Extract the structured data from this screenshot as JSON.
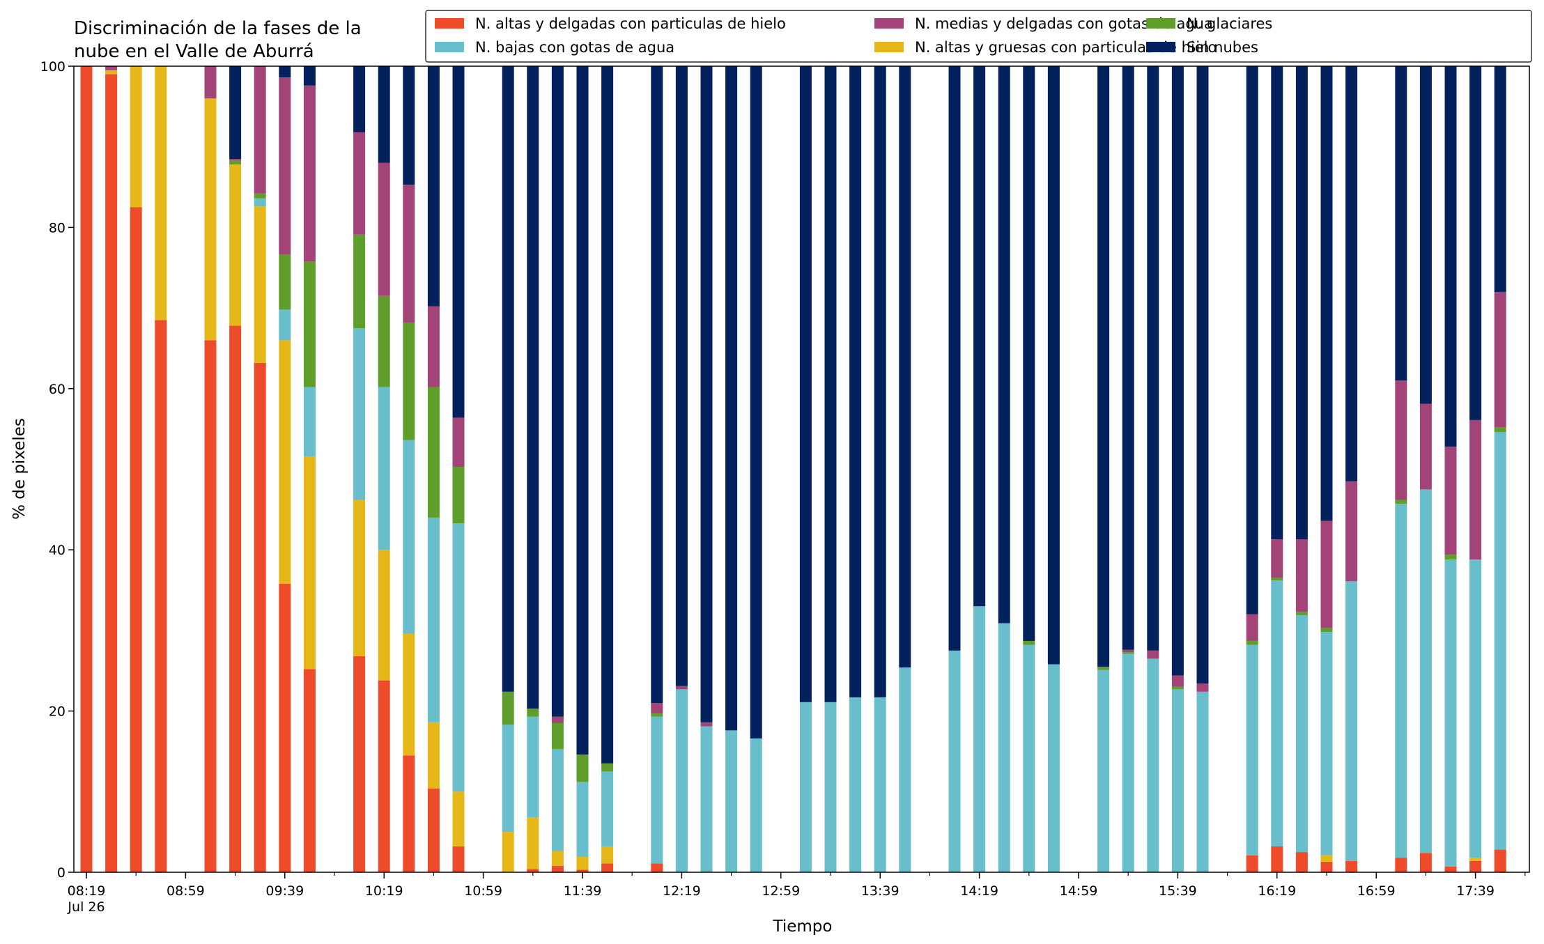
{
  "chart_data": {
    "type": "bar",
    "stacked": true,
    "title_lines": [
      "Discriminación de la fases de la",
      "nube en el Valle de Aburrá"
    ],
    "xlabel": "Tiempo",
    "ylabel": "% de pixeles",
    "ylim": [
      0,
      100
    ],
    "yticks": [
      0,
      20,
      40,
      60,
      80,
      100
    ],
    "grid": false,
    "legend_position": "top-right",
    "x_start": "08:19",
    "x_step_minutes": 10,
    "x_end": "17:59",
    "xtick_labels": [
      {
        "label": "08:19",
        "sub": "Jul 26"
      },
      {
        "label": "08:59",
        "sub": ""
      },
      {
        "label": "09:39",
        "sub": ""
      },
      {
        "label": "10:19",
        "sub": ""
      },
      {
        "label": "10:59",
        "sub": ""
      },
      {
        "label": "11:39",
        "sub": ""
      },
      {
        "label": "12:19",
        "sub": ""
      },
      {
        "label": "12:59",
        "sub": ""
      },
      {
        "label": "13:39",
        "sub": ""
      },
      {
        "label": "14:19",
        "sub": ""
      },
      {
        "label": "14:59",
        "sub": ""
      },
      {
        "label": "15:39",
        "sub": ""
      },
      {
        "label": "16:19",
        "sub": ""
      },
      {
        "label": "16:59",
        "sub": ""
      },
      {
        "label": "17:39",
        "sub": ""
      }
    ],
    "series": [
      {
        "name": "N. altas y delgadas con particulas de hielo",
        "color": "#ee4b2b"
      },
      {
        "name": "N. altas y gruesas con particulas de hielo",
        "color": "#e6b719"
      },
      {
        "name": "N. bajas con gotas de agua",
        "color": "#68bfcb"
      },
      {
        "name": "N. glaciares",
        "color": "#5f9e2b"
      },
      {
        "name": "N. medias y delgadas con gotas de agua",
        "color": "#a24478"
      },
      {
        "name": "Sin nubes",
        "color": "#03215d"
      }
    ],
    "legend_order": [
      0,
      2,
      4,
      1,
      3,
      5
    ],
    "bars": [
      {
        "time": "08:19",
        "values": [
          100,
          0,
          0,
          0,
          0,
          0
        ]
      },
      {
        "time": "08:29",
        "values": [
          99,
          0.5,
          0,
          0,
          0.5,
          0
        ]
      },
      {
        "time": "08:39",
        "values": [
          82.5,
          17.5,
          0,
          0,
          0,
          0
        ]
      },
      {
        "time": "08:49",
        "values": [
          68.5,
          31.5,
          0,
          0,
          0,
          0
        ]
      },
      {
        "time": "09:09",
        "values": [
          66,
          30,
          0,
          0,
          4,
          0
        ]
      },
      {
        "time": "09:19",
        "values": [
          67.8,
          20,
          0,
          0.5,
          0.2,
          11.5
        ]
      },
      {
        "time": "09:29",
        "values": [
          63.2,
          19.4,
          1,
          0.6,
          15.8,
          0
        ]
      },
      {
        "time": "09:39",
        "values": [
          35.8,
          30.2,
          3.8,
          6.8,
          22,
          1.4
        ]
      },
      {
        "time": "09:49",
        "values": [
          25.2,
          26.4,
          8.6,
          15.6,
          21.8,
          2.4
        ]
      },
      {
        "time": "10:09",
        "values": [
          26.8,
          19.4,
          21.3,
          11.6,
          12.7,
          8.2
        ]
      },
      {
        "time": "10:19",
        "values": [
          23.8,
          16.2,
          20.2,
          11.3,
          16.5,
          12
        ]
      },
      {
        "time": "10:29",
        "values": [
          14.5,
          15.1,
          24,
          14.6,
          17.1,
          14.7
        ]
      },
      {
        "time": "10:39",
        "values": [
          10.4,
          8.2,
          25.4,
          16.2,
          10,
          29.8
        ]
      },
      {
        "time": "10:49",
        "values": [
          3.2,
          6.8,
          33.3,
          7,
          6.1,
          43.6
        ]
      },
      {
        "time": "11:09",
        "values": [
          0,
          5,
          13.3,
          4.1,
          0,
          77.6
        ]
      },
      {
        "time": "11:19",
        "values": [
          0.4,
          6.4,
          12.5,
          1,
          0,
          79.7
        ]
      },
      {
        "time": "11:29",
        "values": [
          0.8,
          1.8,
          12.7,
          3.2,
          0.8,
          80.7
        ]
      },
      {
        "time": "11:39",
        "values": [
          0.3,
          1.6,
          9.3,
          3.4,
          0,
          85.4
        ]
      },
      {
        "time": "11:49",
        "values": [
          1.1,
          2.1,
          9.3,
          1,
          0,
          86.5
        ]
      },
      {
        "time": "12:09",
        "values": [
          1.1,
          0,
          18.2,
          0.4,
          1.3,
          79
        ]
      },
      {
        "time": "12:19",
        "values": [
          0,
          0,
          22.7,
          0,
          0.4,
          76.9
        ]
      },
      {
        "time": "12:29",
        "values": [
          0,
          0,
          18.1,
          0,
          0.5,
          81.4
        ]
      },
      {
        "time": "12:39",
        "values": [
          0,
          0,
          17.6,
          0,
          0,
          82.4
        ]
      },
      {
        "time": "12:49",
        "values": [
          0,
          0,
          16.6,
          0,
          0,
          83.4
        ]
      },
      {
        "time": "13:09",
        "values": [
          0,
          0,
          21.1,
          0,
          0,
          78.9
        ]
      },
      {
        "time": "13:19",
        "values": [
          0,
          0,
          21.1,
          0,
          0,
          78.9
        ]
      },
      {
        "time": "13:29",
        "values": [
          0,
          0,
          21.7,
          0,
          0,
          78.3
        ]
      },
      {
        "time": "13:39",
        "values": [
          0,
          0,
          21.7,
          0,
          0,
          78.3
        ]
      },
      {
        "time": "13:49",
        "values": [
          0,
          0,
          25.4,
          0,
          0,
          74.6
        ]
      },
      {
        "time": "14:09",
        "values": [
          0,
          0,
          27.5,
          0,
          0,
          72.5
        ]
      },
      {
        "time": "14:19",
        "values": [
          0,
          0,
          33,
          0,
          0,
          67
        ]
      },
      {
        "time": "14:29",
        "values": [
          0,
          0,
          30.9,
          0,
          0,
          69.1
        ]
      },
      {
        "time": "14:39",
        "values": [
          0,
          0,
          28.2,
          0.5,
          0,
          71.3
        ]
      },
      {
        "time": "14:49",
        "values": [
          0,
          0,
          25.8,
          0,
          0,
          74.2
        ]
      },
      {
        "time": "15:09",
        "values": [
          0,
          0,
          25.1,
          0.4,
          0,
          74.5
        ]
      },
      {
        "time": "15:19",
        "values": [
          0,
          0,
          27.1,
          0.2,
          0.3,
          72.4
        ]
      },
      {
        "time": "15:29",
        "values": [
          0,
          0,
          26.5,
          0,
          1,
          72.5
        ]
      },
      {
        "time": "15:39",
        "values": [
          0,
          0,
          22.7,
          0.3,
          1.4,
          75.6
        ]
      },
      {
        "time": "15:49",
        "values": [
          0,
          0,
          22.4,
          0,
          1,
          76.6
        ]
      },
      {
        "time": "16:09",
        "values": [
          2.1,
          0,
          26.1,
          0.5,
          3.3,
          68
        ]
      },
      {
        "time": "16:19",
        "values": [
          3.2,
          0,
          33,
          0.3,
          4.8,
          58.7
        ]
      },
      {
        "time": "16:29",
        "values": [
          2.5,
          0,
          29.4,
          0.4,
          9,
          58.7
        ]
      },
      {
        "time": "16:39",
        "values": [
          1.3,
          0.8,
          27.7,
          0.5,
          13.3,
          56.4
        ]
      },
      {
        "time": "16:49",
        "values": [
          1.4,
          0,
          34.7,
          0,
          12.4,
          51.5
        ]
      },
      {
        "time": "17:09",
        "values": [
          1.8,
          0,
          43.9,
          0.5,
          14.8,
          39
        ]
      },
      {
        "time": "17:19",
        "values": [
          2.4,
          0,
          45.1,
          0,
          10.6,
          41.9
        ]
      },
      {
        "time": "17:29",
        "values": [
          0.7,
          0,
          38.1,
          0.6,
          13.4,
          47.2
        ]
      },
      {
        "time": "17:39",
        "values": [
          1.4,
          0.4,
          37,
          0,
          17.3,
          43.9
        ]
      },
      {
        "time": "17:49",
        "values": [
          2.8,
          0,
          51.8,
          0.6,
          16.8,
          28
        ]
      }
    ]
  }
}
